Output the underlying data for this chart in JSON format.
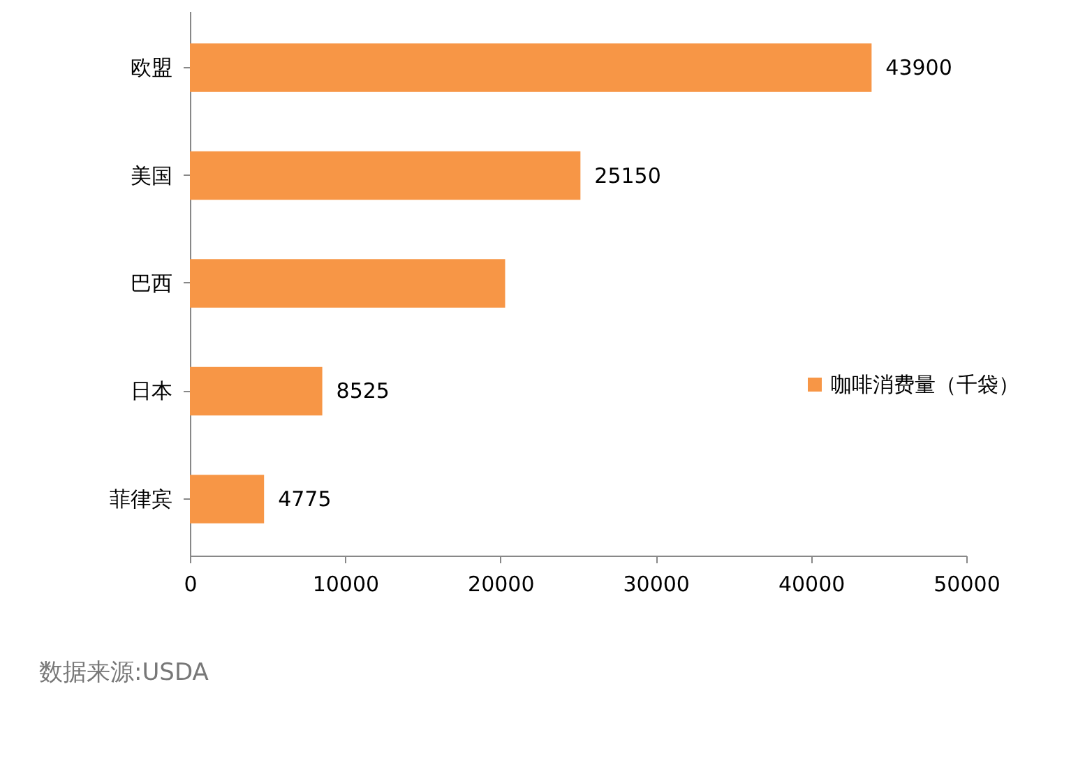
{
  "chart_data": {
    "type": "bar",
    "orientation": "horizontal",
    "categories": [
      "欧盟",
      "美国",
      "巴西",
      "日本",
      "菲律宾"
    ],
    "series": [
      {
        "name": "咖啡消费量（千袋）",
        "color": "#f79646",
        "values": [
          43900,
          25150,
          20300,
          8525,
          4775
        ],
        "value_labels": [
          "43900",
          "25150",
          null,
          "8525",
          "4775"
        ]
      }
    ],
    "xlim": [
      0,
      50000
    ],
    "xticks": [
      0,
      10000,
      20000,
      30000,
      40000,
      50000
    ],
    "legend": "right",
    "grid": false,
    "annotations": [
      "数据来源:USDA"
    ]
  }
}
